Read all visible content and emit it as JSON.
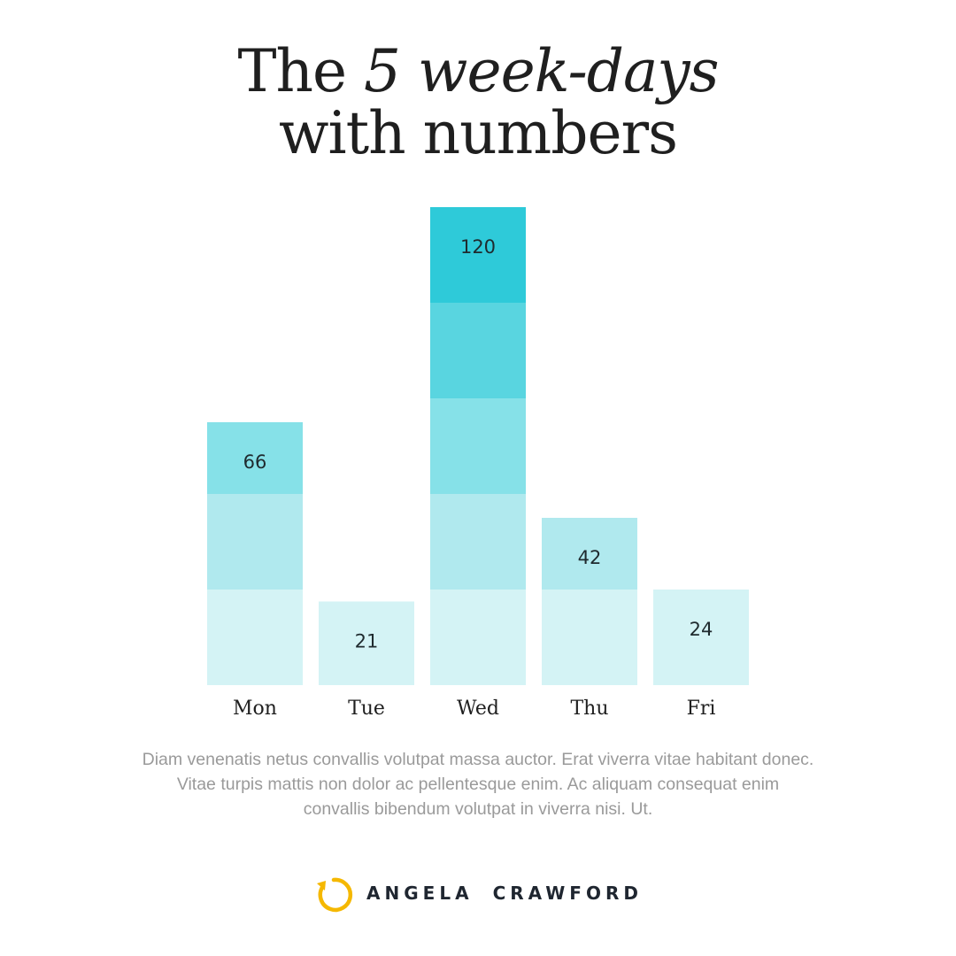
{
  "title": {
    "prefix": "The ",
    "emphasis": "5 week-days",
    "line2": "with numbers"
  },
  "chart_data": {
    "type": "bar",
    "categories": [
      "Mon",
      "Tue",
      "Wed",
      "Thu",
      "Fri"
    ],
    "values": [
      66,
      21,
      120,
      42,
      24
    ],
    "data_labels": [
      "66",
      "21",
      "120",
      "42",
      "24"
    ],
    "band_size": 24,
    "band_colors": [
      "#d4f3f5",
      "#b0e9ee",
      "#86e1e8",
      "#59d5e0",
      "#2ecad9",
      "#00bcd1"
    ],
    "title": "The 5 week-days with numbers",
    "xlabel": "",
    "ylabel": "",
    "ylim": [
      0,
      120
    ],
    "grid": false,
    "legend": "none"
  },
  "caption": "Diam venenatis netus convallis volutpat massa auctor. Erat viverra vitae habitant donec. Vitae turpis mattis non dolor ac pellentesque enim. Ac aliquam consequat enim convallis bibendum volutpat in viverra nisi. Ut.",
  "brand": {
    "first": "ANGELA",
    "last": "CRAWFORD",
    "logo_color": "#f5b800",
    "logo_icon": "circular-arrow-icon"
  }
}
